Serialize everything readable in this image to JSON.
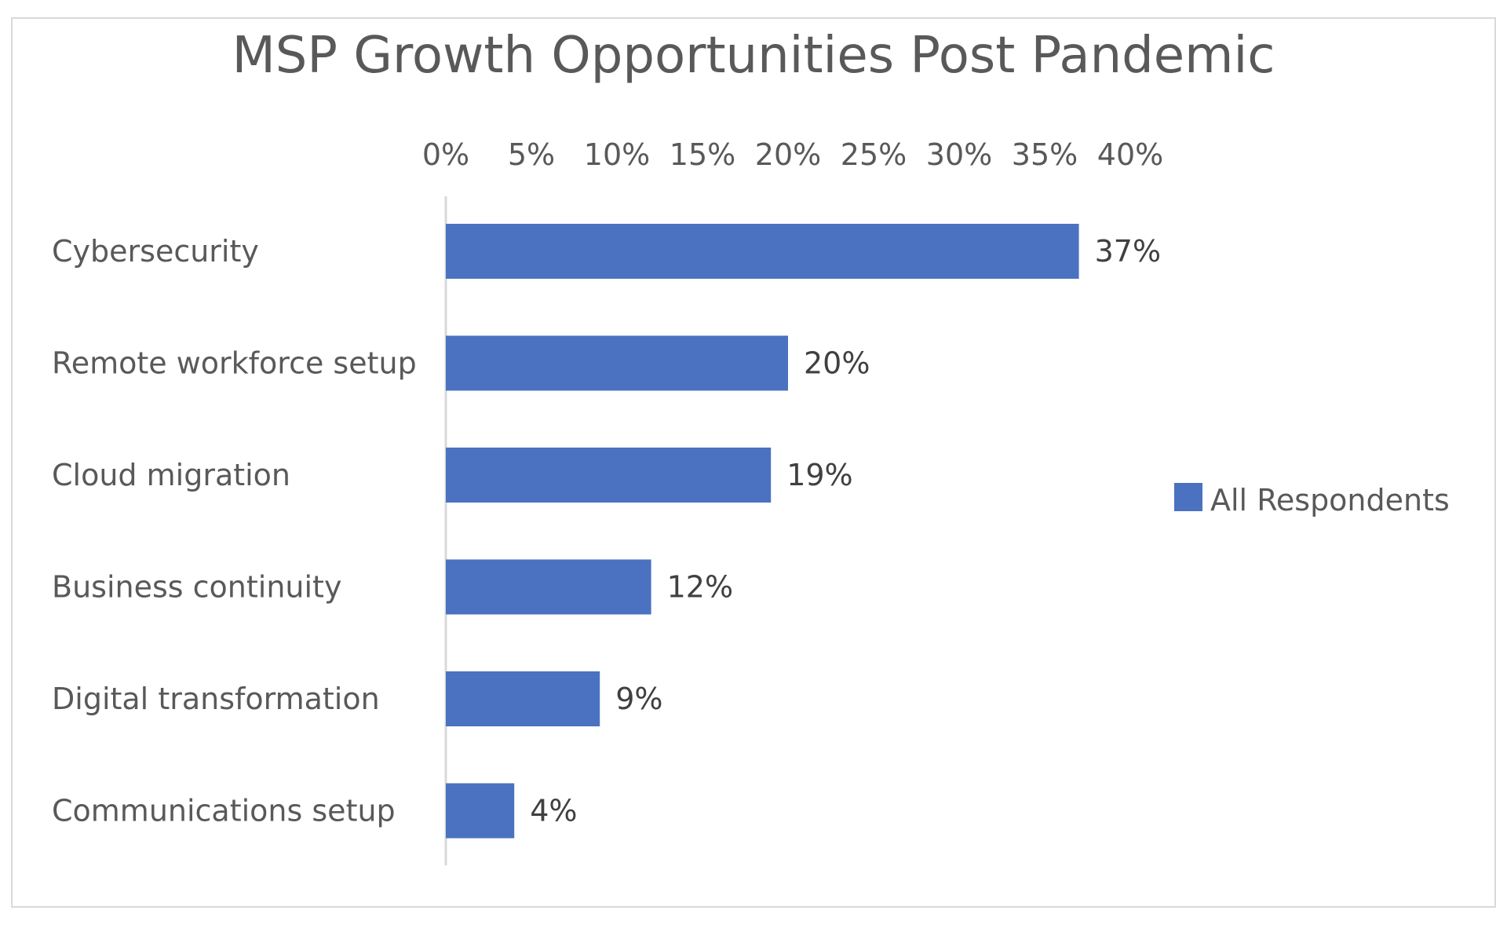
{
  "chart_data": {
    "type": "bar",
    "orientation": "horizontal",
    "title": "MSP Growth Opportunities Post Pandemic",
    "categories": [
      "Cybersecurity",
      "Remote workforce setup",
      "Cloud migration",
      "Business continuity",
      "Digital transformation",
      "Communications setup"
    ],
    "series": [
      {
        "name": "All Respondents",
        "values": [
          37,
          20,
          19,
          12,
          9,
          4
        ],
        "data_labels": [
          "37%",
          "20%",
          "19%",
          "12%",
          "9%",
          "4%"
        ],
        "color": "#4a72c0"
      }
    ],
    "x_ticks": [
      "0%",
      "5%",
      "10%",
      "15%",
      "20%",
      "25%",
      "30%",
      "35%",
      "40%"
    ],
    "xlim": [
      0,
      40
    ],
    "x_axis_position": "top",
    "grid": false,
    "legend": "right"
  }
}
